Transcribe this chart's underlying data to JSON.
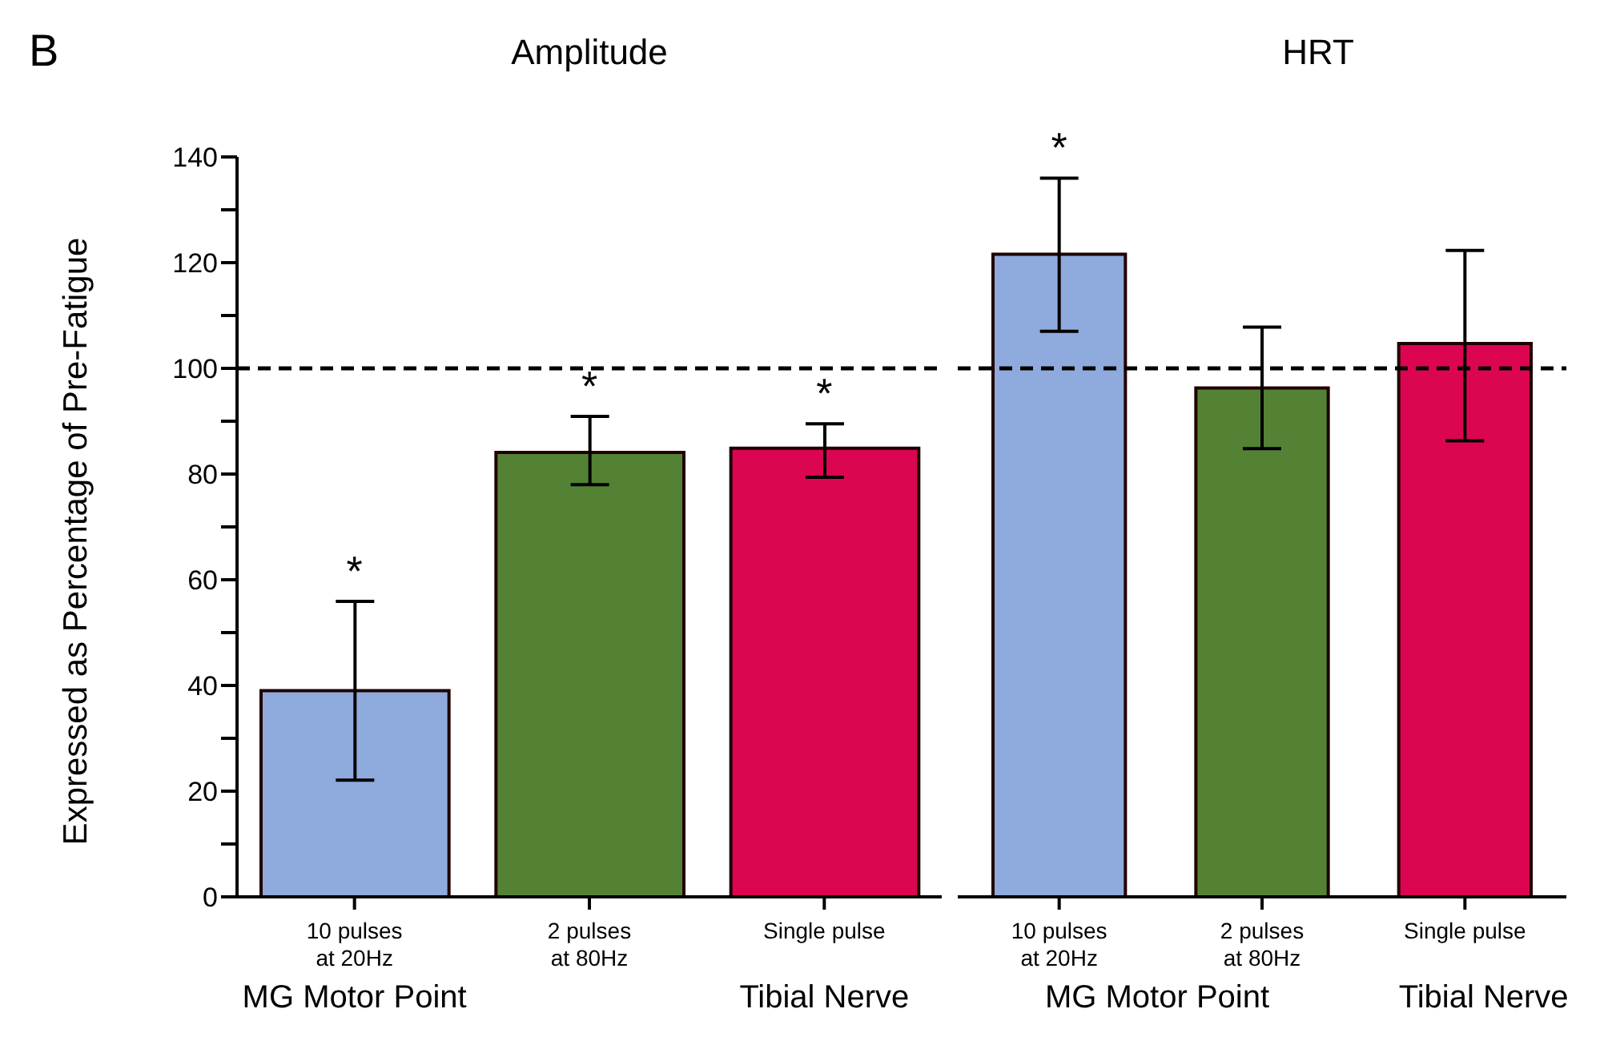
{
  "chart_data": [
    {
      "type": "bar",
      "title": "Amplitude",
      "ylabel": "Expressed as Percentage of Pre-Fatigue",
      "categories": [
        "10 pulses\nat 20Hz",
        "2 pulses\nat 80Hz",
        "Single pulse"
      ],
      "values": [
        39.0,
        84.1,
        84.9
      ],
      "colors": [
        "#8faadc",
        "#548235",
        "#dc0551"
      ],
      "errors": [
        [
          22.1,
          55.9
        ],
        [
          78.0,
          90.9
        ],
        [
          79.4,
          89.5
        ]
      ],
      "ylim": [
        0,
        140
      ],
      "yticks": [
        0,
        {
          "value": 10,
          "label": null
        },
        20,
        {
          "value": 30,
          "label": null
        },
        40,
        {
          "value": 50,
          "label": null
        },
        60,
        {
          "value": 70,
          "label": null
        },
        80,
        {
          "value": 90,
          "label": null
        },
        100,
        {
          "value": 110,
          "label": null
        },
        120,
        {
          "value": 130,
          "label": null
        },
        140
      ],
      "ref_lines": [
        {
          "axis": "y",
          "value": 100,
          "line_style": "dashed",
          "color": "#000000"
        }
      ],
      "annotations": [
        "B",
        "MG Motor Point",
        "Tibial Nerve",
        {
          "text": "*",
          "x": "10 pulses\nat 20Hz",
          "y": 55.9
        },
        {
          "text": "*",
          "x": "2 pulses\nat 80Hz",
          "y": 90.9
        },
        {
          "text": "*",
          "x": "Single pulse",
          "y": 89.5
        }
      ],
      "grid": false
    },
    {
      "type": "bar",
      "title": "HRT",
      "categories": [
        "10 pulses\nat 20Hz",
        "2 pulses\nat 80Hz",
        "Single pulse"
      ],
      "values": [
        121.6,
        96.3,
        104.7
      ],
      "colors": [
        "#8faadc",
        "#548235",
        "#dc0551"
      ],
      "errors": [
        [
          107.0,
          136.0
        ],
        [
          84.8,
          107.8
        ],
        [
          86.3,
          122.3
        ]
      ],
      "ylim": [
        0,
        140
      ],
      "tick_labels": "x",
      "ref_lines": [
        {
          "axis": "y",
          "value": 100,
          "line_style": "dashed",
          "color": "#000000"
        }
      ],
      "annotations": [
        "MG Motor Point",
        "Tibial Nerve",
        {
          "text": "*",
          "x": "10 pulses\nat 20Hz",
          "y": 136.0
        }
      ],
      "grid": false
    }
  ]
}
